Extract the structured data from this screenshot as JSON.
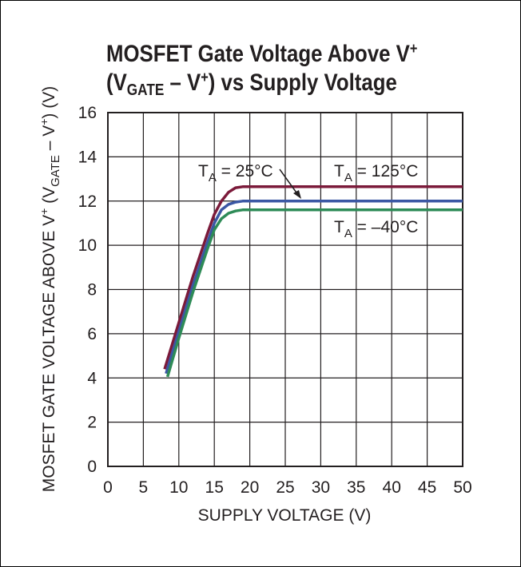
{
  "chart_data": {
    "type": "line",
    "title_line1": "MOSFET Gate Voltage Above V",
    "title_line1_sup": "+",
    "title_line2_a": "(V",
    "title_line2_sub": "GATE",
    "title_line2_b": " – V",
    "title_line2_sup": "+",
    "title_line2_c": ") vs Supply Voltage",
    "xlabel": "SUPPLY VOLTAGE (V)",
    "ylabel_a": "MOSFET GATE VOLTAGE ABOVE V",
    "ylabel_sup1": "+",
    "ylabel_b": " (V",
    "ylabel_sub": "GATE",
    "ylabel_c": " – V",
    "ylabel_sup2": "+",
    "ylabel_d": ") (V)",
    "xlim": [
      0,
      50
    ],
    "ylim": [
      0,
      16
    ],
    "xticks": [
      0,
      5,
      10,
      15,
      20,
      25,
      30,
      35,
      40,
      45,
      50
    ],
    "yticks": [
      0,
      2,
      4,
      6,
      8,
      10,
      12,
      14,
      16
    ],
    "grid": true,
    "series": [
      {
        "name": "TA = 125°C",
        "color": "#7b1a3a",
        "x": [
          8,
          10,
          12,
          14,
          15,
          16,
          17,
          18,
          19,
          20,
          25,
          30,
          40,
          50
        ],
        "y": [
          4.4,
          6.5,
          8.6,
          10.5,
          11.4,
          12.0,
          12.4,
          12.6,
          12.65,
          12.65,
          12.65,
          12.65,
          12.65,
          12.65
        ]
      },
      {
        "name": "TA = 25°C",
        "color": "#3b57a4",
        "x": [
          8.2,
          10,
          12,
          14,
          15,
          16,
          17,
          18,
          19,
          20,
          25,
          30,
          40,
          50
        ],
        "y": [
          4.2,
          6.1,
          8.2,
          10.1,
          11.0,
          11.6,
          11.85,
          11.95,
          12.0,
          12.0,
          12.0,
          12.0,
          12.0,
          12.0
        ]
      },
      {
        "name": "TA = –40°C",
        "color": "#2e8b57",
        "x": [
          8.4,
          10,
          12,
          14,
          15,
          16,
          17,
          18,
          19,
          20,
          25,
          30,
          40,
          50
        ],
        "y": [
          4.05,
          5.8,
          7.9,
          9.8,
          10.7,
          11.2,
          11.45,
          11.55,
          11.6,
          11.6,
          11.6,
          11.6,
          11.6,
          11.6
        ]
      }
    ],
    "annotations": [
      {
        "sym": "T",
        "sub": "A",
        "rest": " = 25°C"
      },
      {
        "sym": "T",
        "sub": "A",
        "rest": " = 125°C"
      },
      {
        "sym": "T",
        "sub": "A",
        "rest": " = –40°C"
      }
    ]
  }
}
